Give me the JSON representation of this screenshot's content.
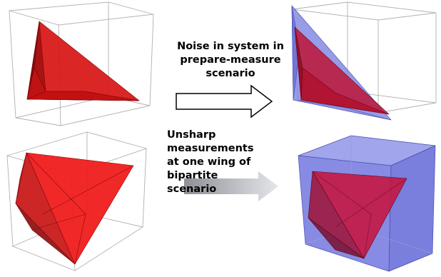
{
  "captions": {
    "top": [
      "Noise in system in",
      "prepare-measure",
      "scenario"
    ],
    "bottom": [
      "Unsharp measurements",
      "at one wing of bipartite",
      "scenario"
    ]
  },
  "colors": {
    "polytope_red": "#d01010",
    "polytope_bright_red": "#f21c1c",
    "noise_blue": "#7a7ee0",
    "cube_edge": "#a8a8a8",
    "arrow_outline": "#000000",
    "arrow_gradient_dark": "#8e9096",
    "arrow_gradient_light": "#e2e4e8"
  },
  "arrows": {
    "top": {
      "style": "outline",
      "direction": "right"
    },
    "bottom": {
      "style": "gradient-filled",
      "direction": "right"
    }
  }
}
